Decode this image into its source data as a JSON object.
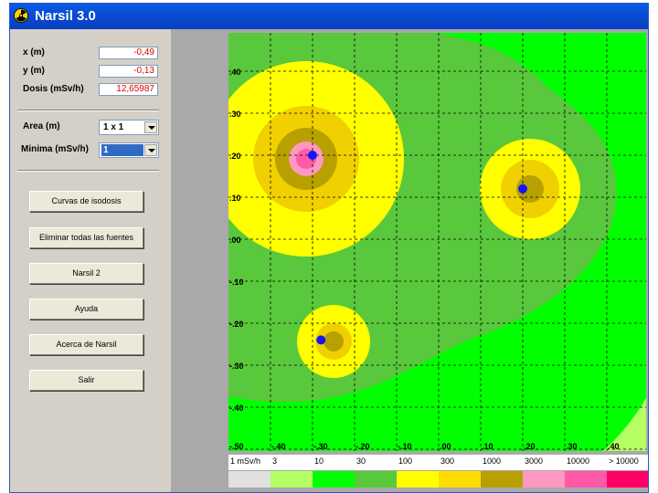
{
  "window": {
    "title": "Narsil 3.0",
    "icon": "radiation-icon"
  },
  "readout": {
    "x_label": "x (m)",
    "x_value": "-0,49",
    "y_label": "y (m)",
    "y_value": "-0,13",
    "dose_label": "Dosis (mSv/h)",
    "dose_value": "12,65987"
  },
  "controls": {
    "area_label": "Area (m)",
    "area_value": "1 x 1",
    "minima_label": "Minima (mSv/h)",
    "minima_value": "1"
  },
  "buttons": [
    "Curvas de isodosis",
    "Eliminar todas las fuentes",
    "Narsil 2",
    "Ayuda",
    "Acerca de Narsil",
    "Salir"
  ],
  "map": {
    "y_ticks": [
      ".40",
      ".30",
      ".20",
      ".10",
      ".00",
      "-.10",
      "-.20",
      "-.30",
      "-.40"
    ],
    "x_ticks": [
      "-.50",
      "-.40",
      "-.30",
      "-.20",
      "-.10",
      ".00",
      ".10",
      ".20",
      ".30",
      ".40"
    ],
    "sources": [
      {
        "x": -0.3,
        "y": 0.2
      },
      {
        "x": 0.2,
        "y": 0.12
      },
      {
        "x": -0.28,
        "y": -0.24
      }
    ],
    "colors": {
      "background_green": "#00ff00",
      "band_3_10": "#5ac83c",
      "yellow": "#ffff00",
      "gold": "#f0d000",
      "olive": "#b8a000",
      "pink": "#ff98c0",
      "magenta": "#ff5aa8",
      "source": "#1414ff"
    }
  },
  "legend": {
    "labels": [
      "1 mSv/h",
      "3",
      "10",
      "30",
      "100",
      "300",
      "1000",
      "3000",
      "10000",
      "> 10000"
    ],
    "colors": [
      "#e0e0e0",
      "#b4ff64",
      "#00ff00",
      "#5ac83c",
      "#ffff00",
      "#ffdc00",
      "#b8a000",
      "#ff98c0",
      "#ff5aa8",
      "#ff0064"
    ]
  }
}
